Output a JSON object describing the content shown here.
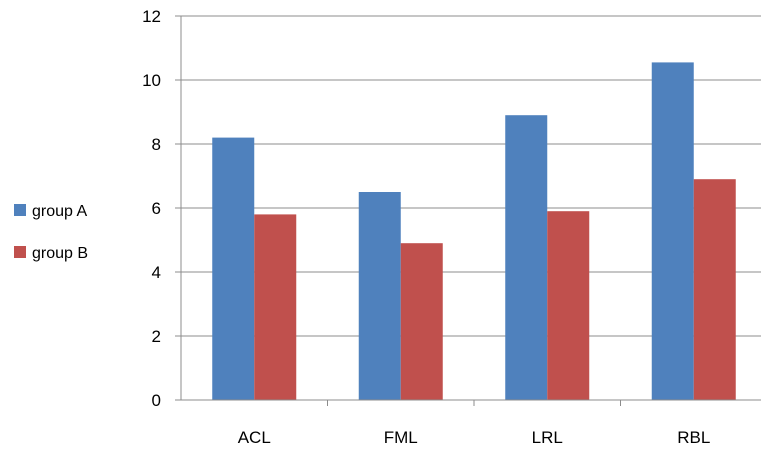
{
  "chart_data": {
    "type": "bar",
    "title": "",
    "xlabel": "",
    "ylabel": "",
    "categories": [
      "ACL",
      "FML",
      "LRL",
      "RBL"
    ],
    "series": [
      {
        "name": "group A",
        "color": "#4F81BD",
        "values": [
          8.2,
          6.5,
          8.9,
          10.55
        ]
      },
      {
        "name": "group B",
        "color": "#C0504D",
        "values": [
          5.8,
          4.9,
          5.9,
          6.9
        ]
      }
    ],
    "ylim": [
      0,
      12
    ],
    "yticks": [
      "0",
      "2",
      "4",
      "6",
      "8",
      "10",
      "12"
    ],
    "grid": true,
    "legend": "left"
  }
}
